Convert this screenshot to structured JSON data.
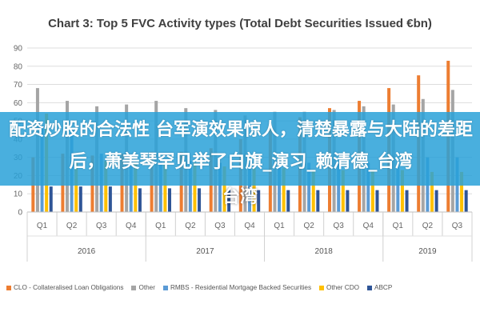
{
  "chart_data": {
    "type": "bar",
    "title": "Chart 3: Top 5 FVC Activity types (Total Debt Securities Issued €bn)",
    "xlabel": "",
    "ylabel": "",
    "ylim": [
      0,
      90
    ],
    "yticks": [
      0,
      10,
      20,
      30,
      40,
      50,
      60,
      70,
      80,
      90
    ],
    "grid": true,
    "legend_position": "bottom",
    "categories": [
      "Q1",
      "Q2",
      "Q3",
      "Q4",
      "Q1",
      "Q2",
      "Q3",
      "Q4",
      "Q1",
      "Q2",
      "Q3",
      "Q4",
      "Q1",
      "Q2",
      "Q3"
    ],
    "year_groups": [
      {
        "label": "2016",
        "count": 4
      },
      {
        "label": "2017",
        "count": 4
      },
      {
        "label": "2018",
        "count": 4
      },
      {
        "label": "2019",
        "count": 3
      }
    ],
    "series": [
      {
        "name": "CLO - Collateralised Loan Obligations",
        "color": "#ed7d31",
        "values": [
          30,
          32,
          31,
          32,
          33,
          33,
          35,
          40,
          48,
          52,
          57,
          61,
          68,
          75,
          83
        ]
      },
      {
        "name": "Other",
        "color": "#a5a5a5",
        "values": [
          68,
          61,
          58,
          59,
          61,
          57,
          56,
          53,
          55,
          55,
          56,
          58,
          59,
          62,
          67
        ]
      },
      {
        "name": "RMBS - Residential Mortgage Backed Securities",
        "color": "#5b9bd5",
        "values": [
          46,
          45,
          32,
          29,
          28,
          28,
          27,
          27,
          27,
          27,
          27,
          27,
          27,
          30,
          30
        ]
      },
      {
        "name": "Other CDO",
        "color": "#ffc000",
        "values": [
          54,
          28,
          28,
          27,
          26,
          27,
          25,
          24,
          24,
          23,
          23,
          23,
          23,
          22,
          22
        ]
      },
      {
        "name": "ABCP",
        "color": "#2f5597",
        "values": [
          14,
          14,
          14,
          13,
          13,
          13,
          12,
          12,
          12,
          12,
          12,
          12,
          12,
          12,
          12
        ]
      }
    ]
  },
  "overlay": {
    "line1": "配资炒股的合法性 台军演效果惊人，清楚暴露与大陆的差距后，萧美琴罕见举了白旗_演习_赖清德_台湾",
    "line2": "台湾"
  }
}
